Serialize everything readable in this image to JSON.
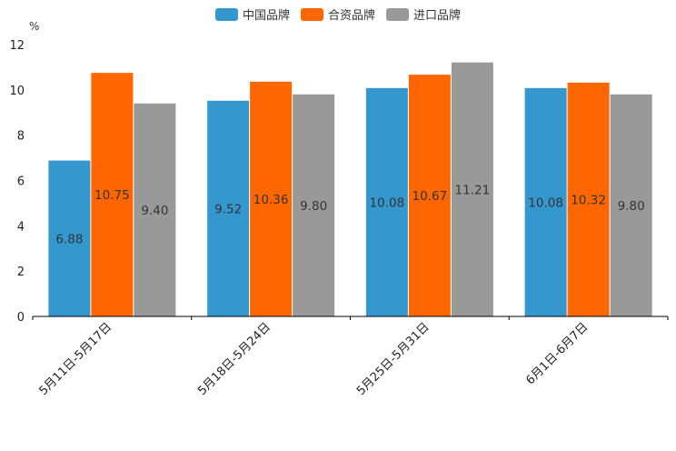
{
  "chart_data": {
    "type": "bar",
    "unit": "%",
    "categories": [
      "5月11日-5月17日",
      "5月18日-5月24日",
      "5月25日-5月31日",
      "6月1日-6月7日"
    ],
    "series": [
      {
        "name": "中国品牌",
        "color": "#3498cf",
        "values": [
          6.88,
          9.52,
          10.08,
          10.08
        ]
      },
      {
        "name": "合资品牌",
        "color": "#ff6600",
        "values": [
          10.75,
          10.36,
          10.67,
          10.32
        ]
      },
      {
        "name": "进口品牌",
        "color": "#999999",
        "values": [
          9.4,
          9.8,
          11.21,
          9.8
        ]
      }
    ],
    "ylim": [
      0,
      12
    ],
    "yticks": [
      0,
      2,
      4,
      6,
      8,
      10,
      12
    ],
    "legend_position": "top-center"
  }
}
